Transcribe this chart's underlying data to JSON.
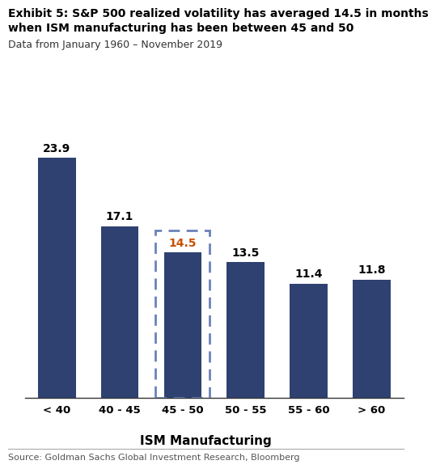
{
  "categories": [
    "< 40",
    "40 - 45",
    "45 - 50",
    "50 - 55",
    "55 - 60",
    "> 60"
  ],
  "values": [
    23.9,
    17.1,
    14.5,
    13.5,
    11.4,
    11.8
  ],
  "bar_color": "#2E4170",
  "highlighted_index": 2,
  "highlight_label_color": "#C85000",
  "title_line1": "Exhibit 5: S&P 500 realized volatility has averaged 14.5 in months",
  "title_line2": "when ISM manufacturing has been between 45 and 50",
  "subtitle": "Data from January 1960 – November 2019",
  "xlabel": "ISM Manufacturing",
  "source": "Source: Goldman Sachs Global Investment Research, Bloomberg",
  "ylim": [
    0,
    28
  ],
  "background_color": "#ffffff",
  "bar_label_fontsize": 10,
  "title_fontsize": 10,
  "subtitle_fontsize": 9,
  "xlabel_fontsize": 11,
  "source_fontsize": 8
}
